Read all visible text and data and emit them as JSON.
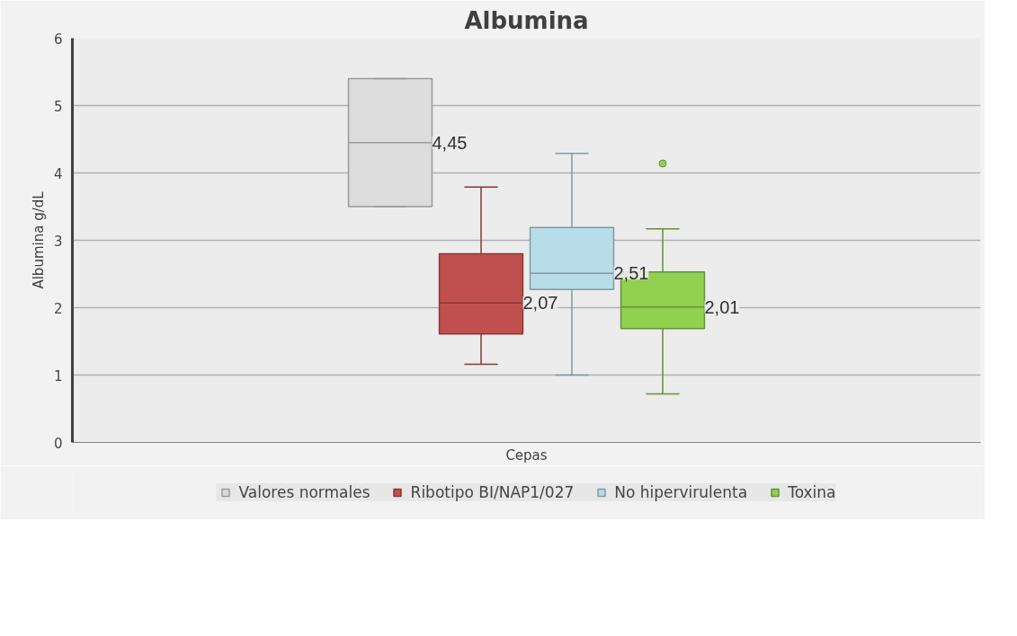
{
  "chart_data": {
    "type": "box",
    "title": "Albumina",
    "xlabel": "Cepas",
    "ylabel": "Albumina g/dL",
    "categories": [
      null
    ],
    "series": [
      {
        "name": "Valores normales",
        "color": "#dcdcdc",
        "boxes": [
          {
            "low": 3.5,
            "q1": 3.5,
            "median": 4.45,
            "q3": 5.4,
            "high": 5.4
          }
        ],
        "value_labels": [
          "4,45"
        ]
      },
      {
        "name": "Ribotipo BI/NAP1/027",
        "color": "#c0504d",
        "boxes": [
          {
            "low": 1.16,
            "q1": 1.61,
            "median": 2.07,
            "q3": 2.8,
            "high": 3.79
          }
        ],
        "value_labels": [
          "2,07"
        ]
      },
      {
        "name": "No hipervirulenta",
        "color": "#b7dde8",
        "boxes": [
          {
            "low": 1.0,
            "q1": 2.27,
            "median": 2.51,
            "q3": 3.19,
            "high": 4.29
          }
        ],
        "value_labels": [
          "2,51"
        ]
      },
      {
        "name": "Toxina",
        "color": "#92d050",
        "boxes": [
          {
            "low": 0.72,
            "q1": 1.69,
            "median": 2.01,
            "q3": 2.53,
            "high": 3.17,
            "outliers": [
              4.14
            ]
          }
        ],
        "value_labels": [
          "2,01"
        ]
      }
    ],
    "ylim": [
      0,
      6
    ],
    "yticks": [
      0,
      1,
      2,
      3,
      4,
      5,
      6
    ],
    "grid": "y",
    "legend": "bottom"
  }
}
